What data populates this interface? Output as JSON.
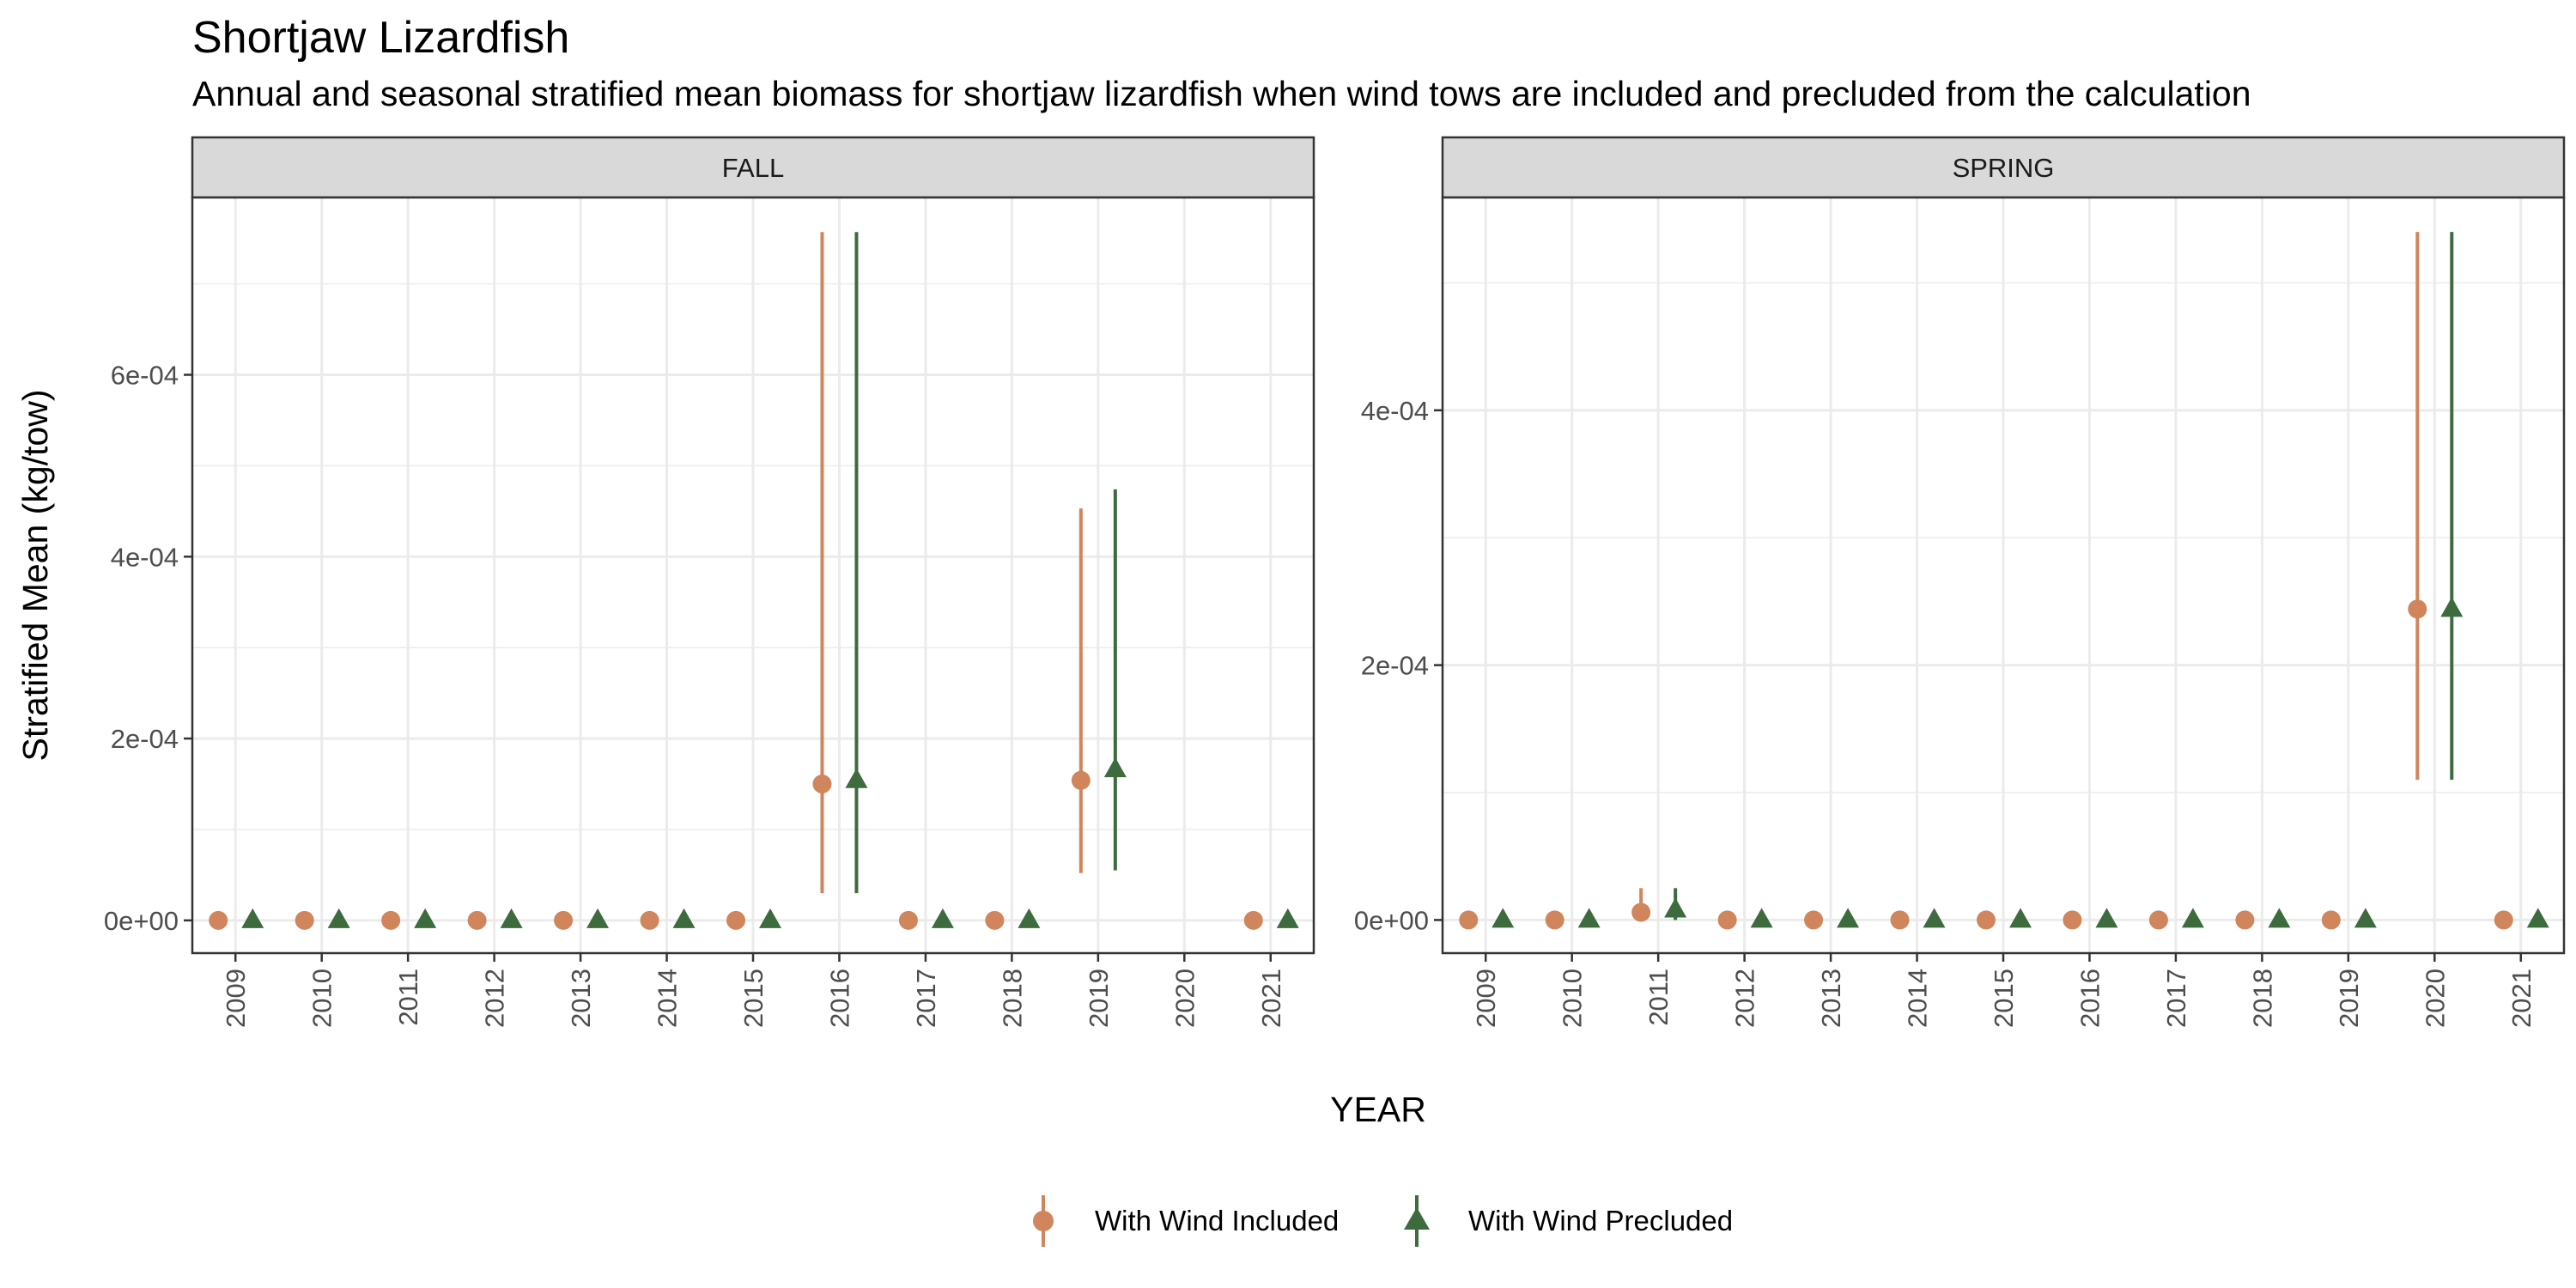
{
  "chart_data": {
    "type": "scatter",
    "title": "Shortjaw Lizardfish",
    "subtitle": "Annual and seasonal stratified mean biomass for shortjaw lizardfish when wind tows are included and precluded from the calculation",
    "xlabel": "YEAR",
    "ylabel": "Stratified Mean (kg/tow)",
    "categories": [
      "2009",
      "2010",
      "2011",
      "2012",
      "2013",
      "2014",
      "2015",
      "2016",
      "2017",
      "2018",
      "2019",
      "2020",
      "2021"
    ],
    "legend": {
      "position": "bottom",
      "items": [
        "With Wind Included",
        "With Wind Precluded"
      ]
    },
    "colors": {
      "included": "#D0855C",
      "precluded": "#3D6B3E",
      "strip": "#D9D9D9",
      "grid": "#EBEBEB"
    },
    "grid": true,
    "panels": [
      {
        "name": "FALL",
        "ylim": [
          -3.6e-05,
          0.000795
        ],
        "yticks": [
          0,
          0.0002,
          0.0004,
          0.0006
        ],
        "ytick_labels": [
          "0e+00",
          "2e-04",
          "4e-04",
          "6e-04"
        ],
        "series": [
          {
            "name": "With Wind Included",
            "values": [
              0,
              0,
              0,
              0,
              0,
              0,
              0,
              0.00015,
              0,
              0,
              0.000154,
              null,
              0
            ],
            "lower": [
              null,
              null,
              null,
              null,
              null,
              null,
              null,
              3e-05,
              null,
              null,
              5.2e-05,
              null,
              null
            ],
            "upper": [
              null,
              null,
              null,
              null,
              null,
              null,
              null,
              0.000757,
              null,
              null,
              0.000453,
              null,
              null
            ]
          },
          {
            "name": "With Wind Precluded",
            "values": [
              0,
              0,
              0,
              0,
              0,
              0,
              0,
              0.000154,
              0,
              0,
              0.000166,
              null,
              0
            ],
            "lower": [
              null,
              null,
              null,
              null,
              null,
              null,
              null,
              3e-05,
              null,
              null,
              5.5e-05,
              null,
              null
            ],
            "upper": [
              null,
              null,
              null,
              null,
              null,
              null,
              null,
              0.000757,
              null,
              null,
              0.000474,
              null,
              null
            ]
          }
        ]
      },
      {
        "name": "SPRING",
        "ylim": [
          -2.6e-05,
          0.000567
        ],
        "yticks": [
          0,
          0.0002,
          0.0004
        ],
        "ytick_labels": [
          "0e+00",
          "2e-04",
          "4e-04"
        ],
        "series": [
          {
            "name": "With Wind Included",
            "values": [
              0,
              0,
              6e-06,
              0,
              0,
              0,
              0,
              0,
              0,
              0,
              0,
              0.000244,
              0
            ],
            "lower": [
              null,
              null,
              0,
              null,
              null,
              null,
              null,
              null,
              null,
              null,
              null,
              0.00011,
              null
            ],
            "upper": [
              null,
              null,
              2.5e-05,
              null,
              null,
              null,
              null,
              null,
              null,
              null,
              null,
              0.00054,
              null
            ]
          },
          {
            "name": "With Wind Precluded",
            "values": [
              0,
              0,
              8e-06,
              0,
              0,
              0,
              0,
              0,
              0,
              0,
              0,
              0.000244,
              0
            ],
            "lower": [
              null,
              null,
              0,
              null,
              null,
              null,
              null,
              null,
              null,
              null,
              null,
              0.00011,
              null
            ],
            "upper": [
              null,
              null,
              2.5e-05,
              null,
              null,
              null,
              null,
              null,
              null,
              null,
              null,
              0.00054,
              null
            ]
          }
        ]
      }
    ]
  }
}
